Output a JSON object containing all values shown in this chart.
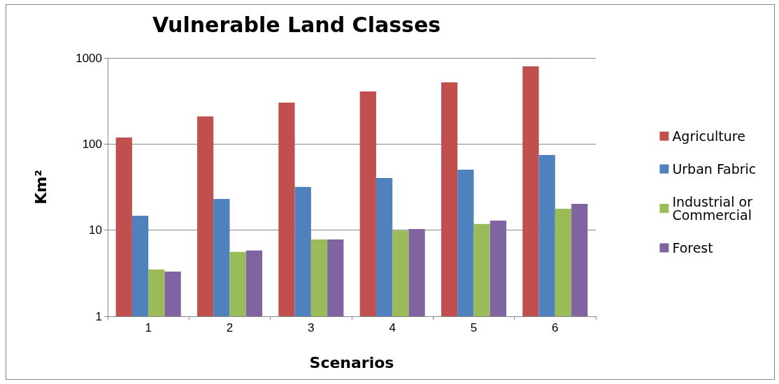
{
  "chart_data": {
    "type": "bar",
    "title": "Vulnerable Land Classes",
    "xlabel": "Scenarios",
    "ylabel": "Km²",
    "categories": [
      "1",
      "2",
      "3",
      "4",
      "5",
      "6"
    ],
    "series": [
      {
        "name": "Agriculture",
        "color": "#c0504d",
        "values": [
          119,
          209,
          303,
          409,
          521,
          800
        ]
      },
      {
        "name": "Urban Fabric",
        "color": "#4f81bd",
        "values": [
          14.7,
          23,
          31.7,
          40.3,
          50.5,
          74.7
        ]
      },
      {
        "name": "Industrial or Commercial",
        "color": "#9bbb59",
        "values": [
          3.5,
          5.6,
          7.8,
          9.9,
          11.8,
          17.7
        ]
      },
      {
        "name": "Forest",
        "color": "#8064a2",
        "values": [
          3.3,
          5.8,
          7.8,
          10.3,
          12.9,
          20.2
        ]
      }
    ],
    "log": "y",
    "ylim": [
      1,
      1000
    ],
    "yticks": [
      1,
      10,
      100,
      1000
    ],
    "grid": "y",
    "legend": "right"
  }
}
